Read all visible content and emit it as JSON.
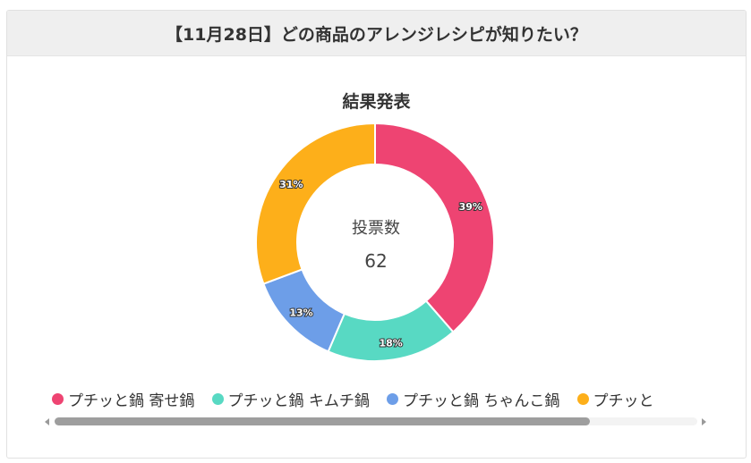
{
  "header": {
    "title": "【11月28日】どの商品のアレンジレシピが知りたい？"
  },
  "chart_data": {
    "type": "pie",
    "title": "結果発表",
    "center": {
      "label": "投票数",
      "value": "62"
    },
    "slices": [
      {
        "label": "プチッと鍋 寄せ鍋",
        "value": 39,
        "display": "39%",
        "color": "#ee4472"
      },
      {
        "label": "プチッと鍋 キムチ鍋",
        "value": 18,
        "display": "18%",
        "color": "#58d9c3"
      },
      {
        "label": "プチッと鍋 ちゃんこ鍋",
        "value": 13,
        "display": "13%",
        "color": "#6d9ee8"
      },
      {
        "label": "プチッと鍋 ...",
        "value": 31,
        "display": "31%",
        "color": "#fdaf1a"
      }
    ],
    "legend_placement": "bottom"
  },
  "legend": {
    "items": [
      "プチッと鍋 寄せ鍋",
      "プチッと鍋 キムチ鍋",
      "プチッと鍋 ちゃんこ鍋",
      "プチッと"
    ]
  },
  "scrollbar": {
    "position": 0
  }
}
